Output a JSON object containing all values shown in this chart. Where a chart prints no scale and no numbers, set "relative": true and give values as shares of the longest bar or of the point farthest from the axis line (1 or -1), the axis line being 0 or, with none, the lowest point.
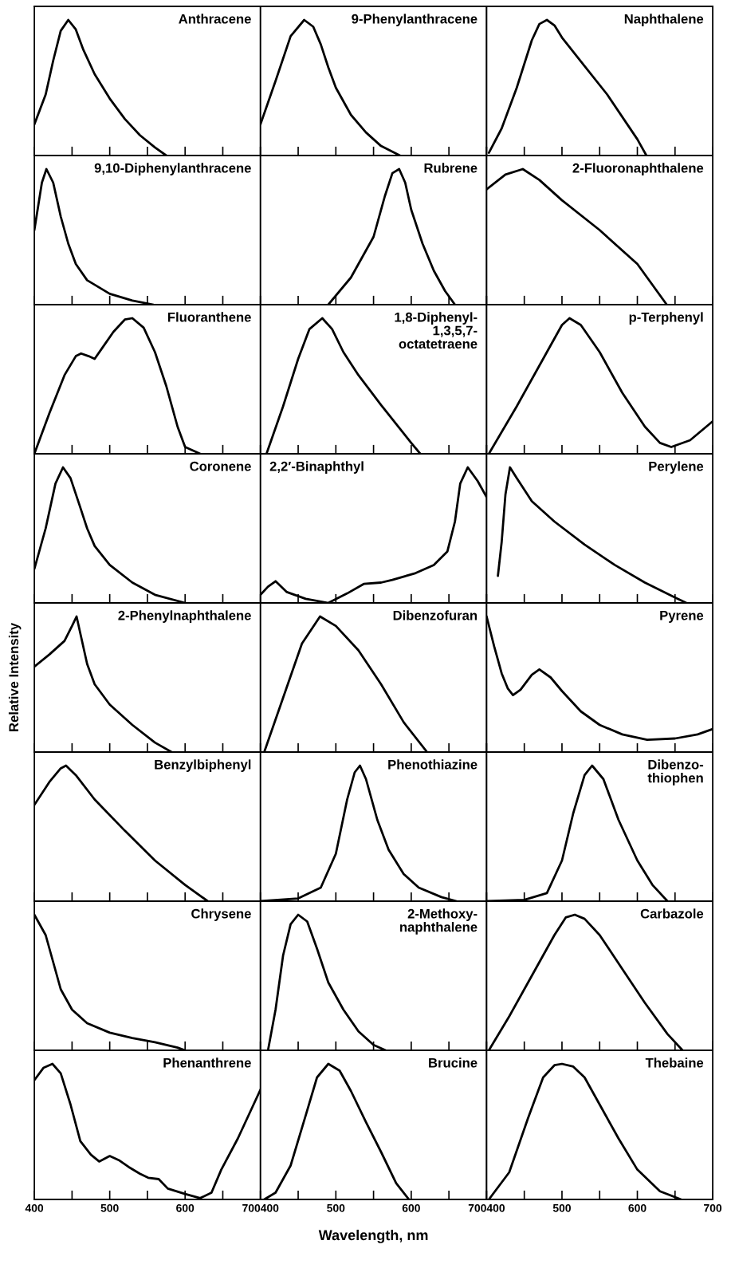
{
  "chart_data": [
    {
      "type": "line",
      "title": "Anthracene",
      "relative": true,
      "color": "#000000",
      "tick_labels": false,
      "xlim": [
        400,
        700
      ],
      "xticks": [
        400,
        {
          "value": 450,
          "label": null
        },
        500,
        {
          "value": 550,
          "label": null
        },
        600,
        {
          "value": 650,
          "label": null
        },
        700
      ],
      "x": [
        400,
        415,
        425,
        435,
        445,
        455,
        465,
        480,
        500,
        520,
        540,
        560,
        575
      ],
      "values": [
        0.23,
        0.45,
        0.7,
        0.92,
        1.0,
        0.93,
        0.78,
        0.6,
        0.42,
        0.27,
        0.15,
        0.06,
        0
      ]
    },
    {
      "type": "line",
      "title": "9-Phenylanthracene",
      "relative": true,
      "color": "#000000",
      "tick_labels": false,
      "xlim": [
        400,
        700
      ],
      "xticks": [
        400,
        {
          "value": 450,
          "label": null
        },
        500,
        {
          "value": 550,
          "label": null
        },
        600,
        {
          "value": 650,
          "label": null
        },
        700
      ],
      "x": [
        400,
        420,
        440,
        458,
        470,
        480,
        490,
        500,
        520,
        540,
        560,
        585
      ],
      "values": [
        0.23,
        0.55,
        0.88,
        1.0,
        0.95,
        0.82,
        0.65,
        0.5,
        0.3,
        0.17,
        0.07,
        0
      ]
    },
    {
      "type": "line",
      "title": "Naphthalene",
      "relative": true,
      "color": "#000000",
      "tick_labels": false,
      "xlim": [
        400,
        700
      ],
      "xticks": [
        400,
        {
          "value": 450,
          "label": null
        },
        500,
        {
          "value": 550,
          "label": null
        },
        600,
        {
          "value": 650,
          "label": null
        },
        700
      ],
      "x": [
        403,
        420,
        440,
        460,
        470,
        480,
        490,
        500,
        530,
        560,
        600,
        612
      ],
      "values": [
        0.02,
        0.2,
        0.5,
        0.85,
        0.97,
        1.0,
        0.96,
        0.87,
        0.66,
        0.45,
        0.12,
        0
      ]
    },
    {
      "type": "line",
      "title": "9,10-Diphenylanthracene",
      "relative": true,
      "color": "#000000",
      "tick_labels": false,
      "xlim": [
        400,
        700
      ],
      "xticks": [
        400,
        {
          "value": 450,
          "label": null
        },
        500,
        {
          "value": 550,
          "label": null
        },
        600,
        {
          "value": 650,
          "label": null
        },
        700
      ],
      "x": [
        400,
        410,
        416,
        425,
        435,
        445,
        455,
        470,
        500,
        530,
        558
      ],
      "values": [
        0.55,
        0.9,
        1.0,
        0.9,
        0.65,
        0.45,
        0.3,
        0.18,
        0.08,
        0.03,
        0
      ]
    },
    {
      "type": "line",
      "title": "Rubrene",
      "relative": true,
      "color": "#000000",
      "tick_labels": false,
      "xlim": [
        400,
        700
      ],
      "xticks": [
        400,
        {
          "value": 450,
          "label": null
        },
        500,
        {
          "value": 550,
          "label": null
        },
        600,
        {
          "value": 650,
          "label": null
        },
        700
      ],
      "x": [
        490,
        520,
        550,
        565,
        575,
        584,
        592,
        600,
        615,
        630,
        645,
        658
      ],
      "values": [
        0,
        0.2,
        0.5,
        0.8,
        0.97,
        1.0,
        0.9,
        0.7,
        0.45,
        0.25,
        0.1,
        0
      ]
    },
    {
      "type": "line",
      "title": "2-Fluoronaphthalene",
      "relative": true,
      "color": "#000000",
      "tick_labels": false,
      "xlim": [
        400,
        700
      ],
      "xticks": [
        400,
        {
          "value": 450,
          "label": null
        },
        500,
        {
          "value": 550,
          "label": null
        },
        600,
        {
          "value": 650,
          "label": null
        },
        700
      ],
      "x": [
        400,
        425,
        448,
        470,
        500,
        550,
        600,
        639
      ],
      "values": [
        0.85,
        0.96,
        1.0,
        0.92,
        0.77,
        0.55,
        0.3,
        0
      ]
    },
    {
      "type": "line",
      "title": "Fluoranthene",
      "relative": true,
      "color": "#000000",
      "tick_labels": false,
      "xlim": [
        400,
        700
      ],
      "xticks": [
        400,
        {
          "value": 450,
          "label": null
        },
        500,
        {
          "value": 550,
          "label": null
        },
        600,
        {
          "value": 650,
          "label": null
        },
        700
      ],
      "x": [
        400,
        420,
        440,
        455,
        462,
        472,
        480,
        490,
        505,
        520,
        530,
        545,
        560,
        575,
        590,
        600,
        620
      ],
      "values": [
        0,
        0.3,
        0.58,
        0.72,
        0.74,
        0.72,
        0.7,
        0.78,
        0.9,
        0.99,
        1.0,
        0.93,
        0.75,
        0.5,
        0.2,
        0.05,
        0
      ]
    },
    {
      "type": "line",
      "title": "1,8-Diphenyl-\n1,3,5,7-\noctatetraene",
      "relative": true,
      "color": "#000000",
      "tick_labels": false,
      "xlim": [
        400,
        700
      ],
      "xticks": [
        400,
        {
          "value": 450,
          "label": null
        },
        500,
        {
          "value": 550,
          "label": null
        },
        600,
        {
          "value": 650,
          "label": null
        },
        700
      ],
      "x": [
        408,
        430,
        450,
        465,
        482,
        495,
        510,
        530,
        560,
        600,
        612
      ],
      "values": [
        0,
        0.35,
        0.7,
        0.92,
        1.0,
        0.92,
        0.75,
        0.58,
        0.36,
        0.08,
        0
      ]
    },
    {
      "type": "line",
      "title": "p-Terphenyl",
      "relative": true,
      "color": "#000000",
      "tick_labels": false,
      "xlim": [
        400,
        700
      ],
      "xticks": [
        400,
        {
          "value": 450,
          "label": null
        },
        500,
        {
          "value": 550,
          "label": null
        },
        600,
        {
          "value": 650,
          "label": null
        },
        700
      ],
      "x": [
        403,
        440,
        480,
        500,
        510,
        525,
        550,
        580,
        610,
        630,
        645,
        670,
        700
      ],
      "values": [
        0,
        0.35,
        0.75,
        0.95,
        1.0,
        0.95,
        0.75,
        0.45,
        0.2,
        0.08,
        0.05,
        0.1,
        0.24
      ]
    },
    {
      "type": "line",
      "title": "Coronene",
      "relative": true,
      "color": "#000000",
      "tick_labels": false,
      "xlim": [
        400,
        700
      ],
      "xticks": [
        400,
        {
          "value": 450,
          "label": null
        },
        500,
        {
          "value": 550,
          "label": null
        },
        600,
        {
          "value": 650,
          "label": null
        },
        700
      ],
      "x": [
        400,
        415,
        428,
        438,
        448,
        460,
        470,
        480,
        500,
        530,
        560,
        600
      ],
      "values": [
        0.25,
        0.55,
        0.88,
        1.0,
        0.92,
        0.72,
        0.55,
        0.42,
        0.28,
        0.15,
        0.06,
        0
      ]
    },
    {
      "type": "line",
      "title": "2,2′-Binaphthyl",
      "relative": true,
      "color": "#000000",
      "tick_labels": false,
      "xlim": [
        400,
        700
      ],
      "xticks": [
        400,
        {
          "value": 450,
          "label": null
        },
        500,
        {
          "value": 550,
          "label": null
        },
        600,
        {
          "value": 650,
          "label": null
        },
        700
      ],
      "x": [
        400,
        410,
        420,
        435,
        460,
        490,
        515,
        537,
        560,
        575,
        606,
        630,
        648,
        658,
        665,
        675,
        688,
        700
      ],
      "values": [
        0.06,
        0.12,
        0.16,
        0.08,
        0.03,
        0,
        0.07,
        0.14,
        0.15,
        0.17,
        0.22,
        0.28,
        0.38,
        0.6,
        0.88,
        1.0,
        0.9,
        0.78
      ]
    },
    {
      "type": "line",
      "title": "Perylene",
      "relative": true,
      "color": "#000000",
      "tick_labels": false,
      "xlim": [
        400,
        700
      ],
      "xticks": [
        400,
        {
          "value": 450,
          "label": null
        },
        500,
        {
          "value": 550,
          "label": null
        },
        600,
        {
          "value": 650,
          "label": null
        },
        700
      ],
      "x": [
        415,
        420,
        425,
        431,
        440,
        460,
        490,
        530,
        570,
        610,
        650,
        665
      ],
      "values": [
        0.2,
        0.45,
        0.8,
        1.0,
        0.92,
        0.75,
        0.6,
        0.43,
        0.28,
        0.15,
        0.04,
        0
      ]
    },
    {
      "type": "line",
      "title": "2-Phenylnaphthalene",
      "relative": true,
      "color": "#000000",
      "tick_labels": false,
      "xlim": [
        400,
        700
      ],
      "xticks": [
        400,
        {
          "value": 450,
          "label": null
        },
        500,
        {
          "value": 550,
          "label": null
        },
        600,
        {
          "value": 650,
          "label": null
        },
        700
      ],
      "x": [
        400,
        420,
        440,
        450,
        456,
        462,
        470,
        480,
        500,
        530,
        560,
        582
      ],
      "values": [
        0.63,
        0.72,
        0.82,
        0.93,
        1.0,
        0.85,
        0.65,
        0.5,
        0.35,
        0.2,
        0.07,
        0
      ],
      "ylabel": "Relative Intensity"
    },
    {
      "type": "line",
      "title": "Dibenzofuran",
      "relative": true,
      "color": "#000000",
      "tick_labels": false,
      "xlim": [
        400,
        700
      ],
      "xticks": [
        400,
        {
          "value": 450,
          "label": null
        },
        500,
        {
          "value": 550,
          "label": null
        },
        600,
        {
          "value": 650,
          "label": null
        },
        700
      ],
      "x": [
        405,
        430,
        455,
        479,
        500,
        530,
        560,
        590,
        621
      ],
      "values": [
        0,
        0.4,
        0.8,
        1.0,
        0.93,
        0.75,
        0.5,
        0.22,
        0
      ]
    },
    {
      "type": "line",
      "title": "Pyrene",
      "relative": true,
      "color": "#000000",
      "tick_labels": false,
      "xlim": [
        400,
        700
      ],
      "xticks": [
        400,
        {
          "value": 450,
          "label": null
        },
        500,
        {
          "value": 550,
          "label": null
        },
        600,
        {
          "value": 650,
          "label": null
        },
        700
      ],
      "x": [
        400,
        410,
        420,
        428,
        435,
        445,
        460,
        470,
        485,
        500,
        525,
        550,
        580,
        613,
        650,
        680,
        700
      ],
      "values": [
        1.0,
        0.78,
        0.58,
        0.47,
        0.42,
        0.46,
        0.57,
        0.61,
        0.55,
        0.45,
        0.3,
        0.2,
        0.13,
        0.09,
        0.1,
        0.13,
        0.17
      ]
    },
    {
      "type": "line",
      "title": "Benzylbiphenyl",
      "relative": true,
      "color": "#000000",
      "tick_labels": false,
      "xlim": [
        400,
        700
      ],
      "xticks": [
        400,
        {
          "value": 450,
          "label": null
        },
        500,
        {
          "value": 550,
          "label": null
        },
        600,
        {
          "value": 650,
          "label": null
        },
        700
      ],
      "x": [
        400,
        420,
        435,
        442,
        455,
        480,
        520,
        560,
        600,
        630
      ],
      "values": [
        0.71,
        0.88,
        0.98,
        1.0,
        0.93,
        0.75,
        0.52,
        0.3,
        0.12,
        0
      ]
    },
    {
      "type": "line",
      "title": "Phenothiazine",
      "relative": true,
      "color": "#000000",
      "tick_labels": false,
      "xlim": [
        400,
        700
      ],
      "xticks": [
        400,
        {
          "value": 450,
          "label": null
        },
        500,
        {
          "value": 550,
          "label": null
        },
        600,
        {
          "value": 650,
          "label": null
        },
        700
      ],
      "x": [
        400,
        450,
        480,
        500,
        515,
        525,
        532,
        540,
        555,
        570,
        590,
        610,
        640,
        660
      ],
      "values": [
        0,
        0.02,
        0.1,
        0.35,
        0.75,
        0.95,
        1.0,
        0.9,
        0.6,
        0.38,
        0.2,
        0.1,
        0.03,
        0
      ]
    },
    {
      "type": "line",
      "title": "Dibenzo-\nthiophen",
      "relative": true,
      "color": "#000000",
      "tick_labels": false,
      "xlim": [
        400,
        700
      ],
      "xticks": [
        400,
        {
          "value": 450,
          "label": null
        },
        500,
        {
          "value": 550,
          "label": null
        },
        600,
        {
          "value": 650,
          "label": null
        },
        700
      ],
      "x": [
        400,
        450,
        480,
        500,
        515,
        530,
        540,
        555,
        575,
        600,
        620,
        640
      ],
      "values": [
        0,
        0.01,
        0.06,
        0.3,
        0.65,
        0.93,
        1.0,
        0.9,
        0.6,
        0.3,
        0.12,
        0
      ]
    },
    {
      "type": "line",
      "title": "Chrysene",
      "relative": true,
      "color": "#000000",
      "tick_labels": false,
      "xlim": [
        400,
        700
      ],
      "xticks": [
        400,
        {
          "value": 450,
          "label": null
        },
        500,
        {
          "value": 550,
          "label": null
        },
        600,
        {
          "value": 650,
          "label": null
        },
        700
      ],
      "x": [
        400,
        415,
        425,
        435,
        450,
        470,
        500,
        530,
        560,
        590,
        600
      ],
      "values": [
        1.0,
        0.85,
        0.65,
        0.45,
        0.3,
        0.2,
        0.13,
        0.09,
        0.06,
        0.02,
        0
      ]
    },
    {
      "type": "line",
      "title": "2-Methoxy-\nnaphthalene",
      "relative": true,
      "color": "#000000",
      "tick_labels": false,
      "xlim": [
        400,
        700
      ],
      "xticks": [
        400,
        {
          "value": 450,
          "label": null
        },
        500,
        {
          "value": 550,
          "label": null
        },
        600,
        {
          "value": 650,
          "label": null
        },
        700
      ],
      "x": [
        410,
        420,
        430,
        440,
        450,
        462,
        475,
        490,
        510,
        530,
        550,
        566
      ],
      "values": [
        0,
        0.3,
        0.7,
        0.93,
        1.0,
        0.95,
        0.75,
        0.5,
        0.3,
        0.14,
        0.04,
        0
      ]
    },
    {
      "type": "line",
      "title": "Carbazole",
      "relative": true,
      "color": "#000000",
      "tick_labels": false,
      "xlim": [
        400,
        700
      ],
      "xticks": [
        400,
        {
          "value": 450,
          "label": null
        },
        500,
        {
          "value": 550,
          "label": null
        },
        600,
        {
          "value": 650,
          "label": null
        },
        700
      ],
      "x": [
        403,
        430,
        460,
        490,
        505,
        517,
        530,
        550,
        580,
        610,
        640,
        660
      ],
      "values": [
        0,
        0.25,
        0.55,
        0.85,
        0.98,
        1.0,
        0.97,
        0.85,
        0.6,
        0.35,
        0.12,
        0
      ]
    },
    {
      "type": "line",
      "title": "Phenanthrene",
      "relative": true,
      "color": "#000000",
      "tick_labels": "x",
      "xlim": [
        400,
        700
      ],
      "xticks": [
        400,
        {
          "value": 450,
          "label": null
        },
        500,
        {
          "value": 550,
          "label": null
        },
        600,
        {
          "value": 650,
          "label": null
        },
        700
      ],
      "x": [
        400,
        412,
        424,
        435,
        448,
        461,
        475,
        486,
        500,
        512,
        525,
        540,
        551,
        565,
        577,
        600,
        620,
        635,
        648,
        670,
        700
      ],
      "values": [
        0.88,
        0.97,
        1.0,
        0.93,
        0.7,
        0.43,
        0.33,
        0.28,
        0.32,
        0.29,
        0.24,
        0.19,
        0.16,
        0.15,
        0.08,
        0.04,
        0.01,
        0.05,
        0.22,
        0.45,
        0.81
      ]
    },
    {
      "type": "line",
      "title": "Brucine",
      "relative": true,
      "color": "#000000",
      "tick_labels": "x",
      "xlim": [
        400,
        700
      ],
      "xticks": [
        400,
        {
          "value": 450,
          "label": null
        },
        500,
        {
          "value": 550,
          "label": null
        },
        600,
        {
          "value": 650,
          "label": null
        },
        700
      ],
      "x": [
        405,
        420,
        440,
        460,
        475,
        490,
        505,
        520,
        540,
        560,
        580,
        597
      ],
      "values": [
        0,
        0.05,
        0.25,
        0.62,
        0.9,
        1.0,
        0.95,
        0.8,
        0.57,
        0.35,
        0.12,
        0
      ],
      "xlabel": "Wavelength, nm"
    },
    {
      "type": "line",
      "title": "Thebaine",
      "relative": true,
      "color": "#000000",
      "tick_labels": "x",
      "xlim": [
        400,
        700
      ],
      "xticks": [
        400,
        {
          "value": 450,
          "label": null
        },
        500,
        {
          "value": 550,
          "label": null
        },
        600,
        {
          "value": 650,
          "label": null
        },
        700
      ],
      "x": [
        403,
        430,
        455,
        475,
        490,
        500,
        515,
        530,
        550,
        575,
        600,
        630,
        658
      ],
      "values": [
        0,
        0.2,
        0.6,
        0.9,
        0.99,
        1.0,
        0.98,
        0.9,
        0.7,
        0.45,
        0.22,
        0.06,
        0
      ]
    }
  ]
}
